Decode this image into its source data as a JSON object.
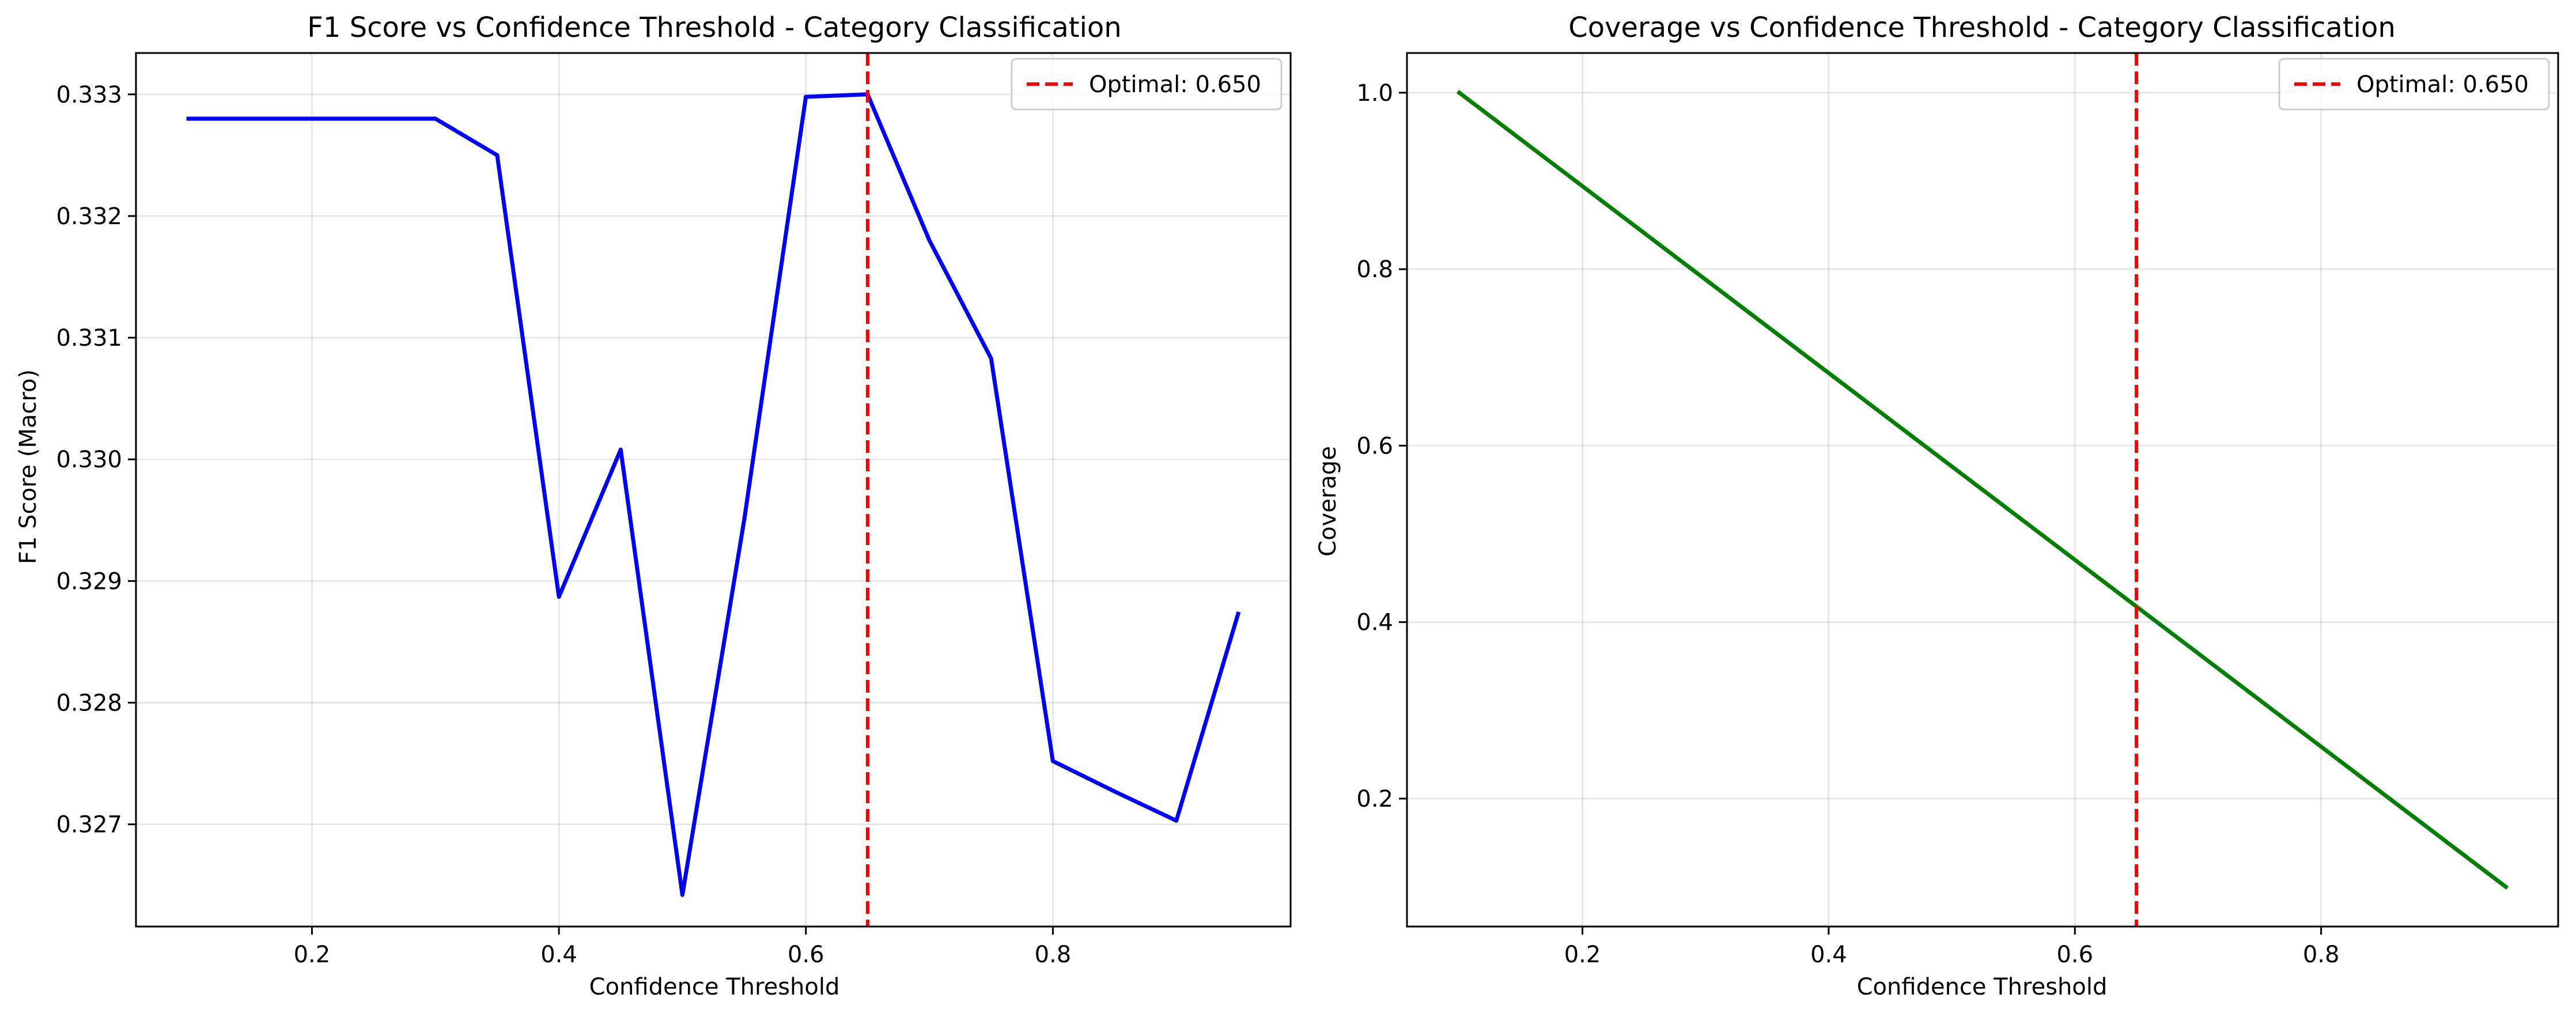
{
  "chart_data": [
    {
      "type": "line",
      "title": "F1 Score vs Confidence Threshold - Category Classification",
      "xlabel": "Confidence Threshold",
      "ylabel": "F1 Score (Macro)",
      "xlim": [
        0.0575,
        0.9925
      ],
      "ylim": [
        0.32616,
        0.33334
      ],
      "xticks": [
        0.2,
        0.4,
        0.6,
        0.8
      ],
      "xtick_labels": [
        "0.2",
        "0.4",
        "0.6",
        "0.8"
      ],
      "yticks": [
        0.327,
        0.328,
        0.329,
        0.33,
        0.331,
        0.332,
        0.333
      ],
      "ytick_labels": [
        "0.327",
        "0.328",
        "0.329",
        "0.330",
        "0.331",
        "0.332",
        "0.333"
      ],
      "grid": true,
      "legend_position": "top-right",
      "series": [
        {
          "color": "#0000ff",
          "x": [
            0.1,
            0.15,
            0.2,
            0.25,
            0.3,
            0.35,
            0.4,
            0.45,
            0.5,
            0.55,
            0.6,
            0.65,
            0.7,
            0.75,
            0.8,
            0.85,
            0.9,
            0.95
          ],
          "y": [
            0.3328,
            0.3328,
            0.3328,
            0.3328,
            0.3328,
            0.3325,
            0.32887,
            0.33008,
            0.32642,
            0.3295,
            0.33298,
            0.333,
            0.3318,
            0.33083,
            0.32752,
            0.32727,
            0.32703,
            0.32873
          ]
        }
      ],
      "vline": {
        "x": 0.65,
        "color": "#ff0000",
        "label": "Optimal: 0.650"
      }
    },
    {
      "type": "line",
      "title": "Coverage vs Confidence Threshold - Category Classification",
      "xlabel": "Confidence Threshold",
      "ylabel": "Coverage",
      "xlim": [
        0.0575,
        0.9925
      ],
      "ylim": [
        0.055,
        1.045
      ],
      "xticks": [
        0.2,
        0.4,
        0.6,
        0.8
      ],
      "xtick_labels": [
        "0.2",
        "0.4",
        "0.6",
        "0.8"
      ],
      "yticks": [
        0.2,
        0.4,
        0.6,
        0.8,
        1.0
      ],
      "ytick_labels": [
        "0.2",
        "0.4",
        "0.6",
        "0.8",
        "1.0"
      ],
      "grid": true,
      "legend_position": "top-right",
      "series": [
        {
          "color": "#008000",
          "x": [
            0.1,
            0.95
          ],
          "y": [
            1.0,
            0.1
          ]
        }
      ],
      "vline": {
        "x": 0.65,
        "color": "#ff0000",
        "label": "Optimal: 0.650"
      }
    }
  ]
}
